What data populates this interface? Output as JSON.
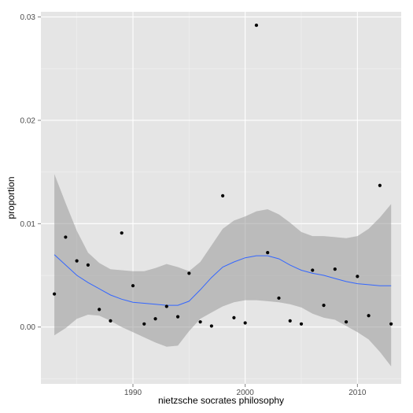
{
  "chart_data": {
    "type": "scatter",
    "xlabel": "nietzsche socrates philosophy",
    "ylabel": "proportion",
    "xlim": [
      1981.8,
      2013.9
    ],
    "ylim": [
      -0.0055,
      0.0305
    ],
    "x_ticks": [
      1990,
      2000,
      2010
    ],
    "x_tick_labels": [
      "1990",
      "2000",
      "2010"
    ],
    "y_ticks": [
      0.0,
      0.01,
      0.02,
      0.03
    ],
    "y_tick_labels": [
      "0.00",
      "0.01",
      "0.02",
      "0.03"
    ],
    "grid": true,
    "points": {
      "x": [
        1983,
        1984,
        1985,
        1986,
        1987,
        1988,
        1989,
        1990,
        1991,
        1992,
        1993,
        1994,
        1995,
        1996,
        1997,
        1998,
        1999,
        2000,
        2001,
        2002,
        2003,
        2004,
        2005,
        2006,
        2007,
        2008,
        2009,
        2010,
        2011,
        2012,
        2013
      ],
      "y": [
        0.0032,
        0.0087,
        0.0064,
        0.006,
        0.0017,
        0.0006,
        0.0091,
        0.004,
        0.0003,
        0.0008,
        0.002,
        0.001,
        0.0052,
        0.0005,
        0.0001,
        0.0127,
        0.0009,
        0.0004,
        0.0292,
        0.0072,
        0.0028,
        0.0006,
        0.0003,
        0.0055,
        0.0021,
        0.0056,
        0.0005,
        0.0049,
        0.0011,
        0.0137,
        0.0003
      ]
    },
    "smooth": {
      "x": [
        1983,
        1984,
        1985,
        1986,
        1987,
        1988,
        1989,
        1990,
        1991,
        1992,
        1993,
        1994,
        1995,
        1996,
        1997,
        1998,
        1999,
        2000,
        2001,
        2002,
        2003,
        2004,
        2005,
        2006,
        2007,
        2008,
        2009,
        2010,
        2011,
        2012,
        2013
      ],
      "y": [
        0.007,
        0.006,
        0.005,
        0.0043,
        0.0037,
        0.0031,
        0.0027,
        0.0024,
        0.0023,
        0.0022,
        0.0021,
        0.0021,
        0.0025,
        0.0036,
        0.0048,
        0.0058,
        0.0063,
        0.0067,
        0.0069,
        0.0069,
        0.0066,
        0.006,
        0.0055,
        0.0052,
        0.005,
        0.0047,
        0.0044,
        0.0042,
        0.0041,
        0.004,
        0.004
      ],
      "lower": [
        -0.0008,
        -0.0001,
        0.0008,
        0.0012,
        0.0011,
        0.0006,
        0.0,
        -0.0005,
        -0.001,
        -0.0015,
        -0.0019,
        -0.0018,
        -0.0004,
        0.0008,
        0.0014,
        0.002,
        0.0024,
        0.0026,
        0.0026,
        0.0025,
        0.0024,
        0.0022,
        0.0019,
        0.0013,
        0.0009,
        0.0007,
        0.0001,
        -0.0005,
        -0.0012,
        -0.0024,
        -0.0038
      ],
      "upper": [
        0.0148,
        0.012,
        0.0093,
        0.0072,
        0.0062,
        0.0056,
        0.0055,
        0.0054,
        0.0054,
        0.0057,
        0.0061,
        0.0058,
        0.0054,
        0.0063,
        0.0079,
        0.0095,
        0.0103,
        0.0107,
        0.0112,
        0.0114,
        0.0109,
        0.0101,
        0.0092,
        0.0088,
        0.0088,
        0.0087,
        0.0086,
        0.0088,
        0.0095,
        0.0106,
        0.0119
      ]
    },
    "colors": {
      "panel": "#e5e5e5",
      "grid_major": "#ffffff",
      "grid_minor": "#f2f2f2",
      "ribbon": "#999999",
      "line": "#3366ff",
      "point": "#000000"
    }
  }
}
